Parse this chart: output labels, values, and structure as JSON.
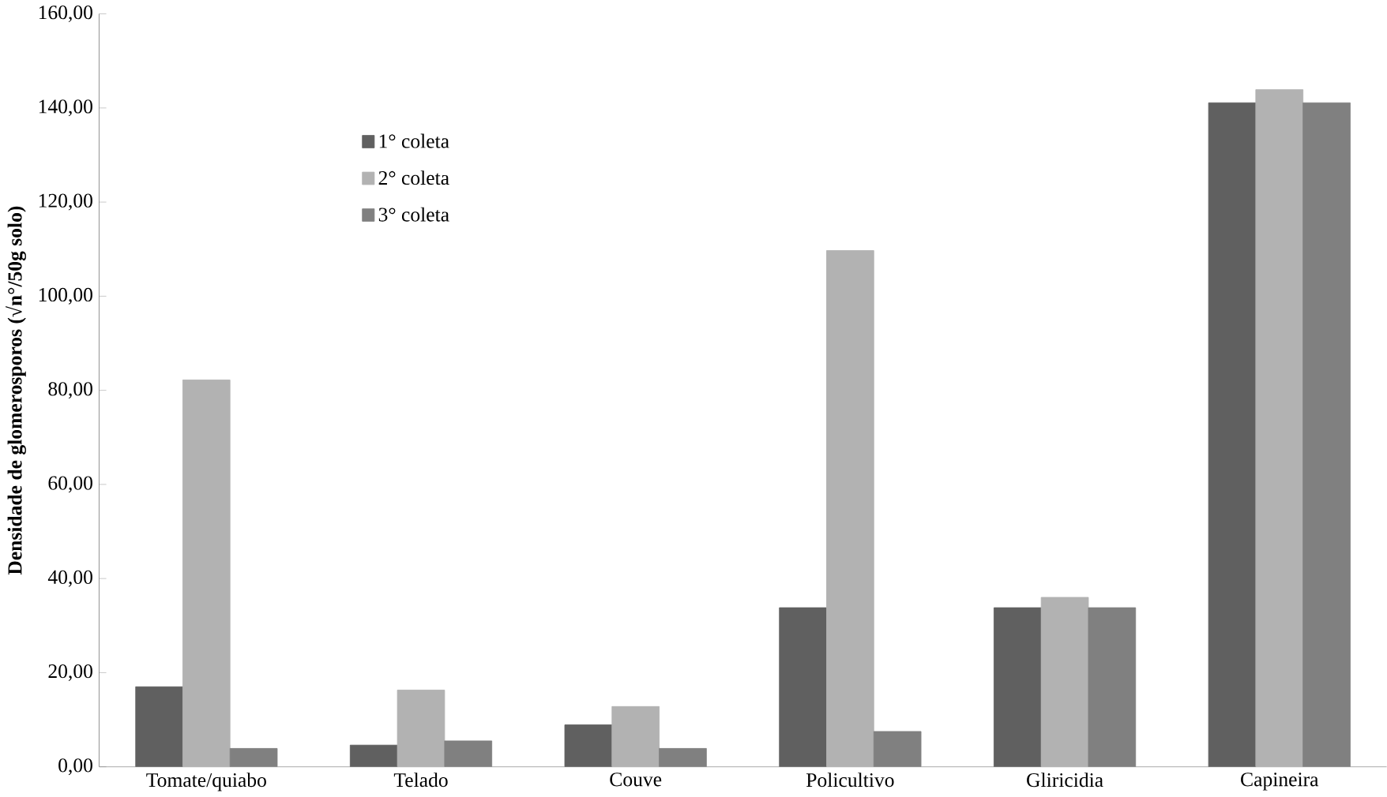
{
  "chart_data": {
    "type": "bar",
    "ylabel": "Densidade de glomerosporos (√n°/50g solo)",
    "categories": [
      "Tomate/quiabo",
      "Telado",
      "Couve",
      "Policultivo",
      "Gliricidia",
      "Capineira"
    ],
    "series": [
      {
        "name": "1° coleta",
        "color": "#606060",
        "values": [
          17.0,
          4.6,
          8.9,
          33.8,
          33.8,
          141.1
        ]
      },
      {
        "name": "2° coleta",
        "color": "#b2b2b2",
        "values": [
          82.2,
          16.3,
          12.8,
          109.7,
          36.0,
          143.9
        ]
      },
      {
        "name": "3° coleta",
        "color": "#808080",
        "values": [
          3.9,
          5.5,
          3.9,
          7.5,
          33.8,
          141.1
        ]
      }
    ],
    "ylim": [
      0,
      160
    ],
    "yticks": [
      {
        "value": 0,
        "label": "0,00"
      },
      {
        "value": 20,
        "label": "20,00"
      },
      {
        "value": 40,
        "label": "40,00"
      },
      {
        "value": 60,
        "label": "60,00"
      },
      {
        "value": 80,
        "label": "80,00"
      },
      {
        "value": 100,
        "label": "100,00"
      },
      {
        "value": 120,
        "label": "120,00"
      },
      {
        "value": 140,
        "label": "140,00"
      },
      {
        "value": 160,
        "label": "160,00"
      }
    ],
    "grid": false,
    "legend": "top left"
  }
}
